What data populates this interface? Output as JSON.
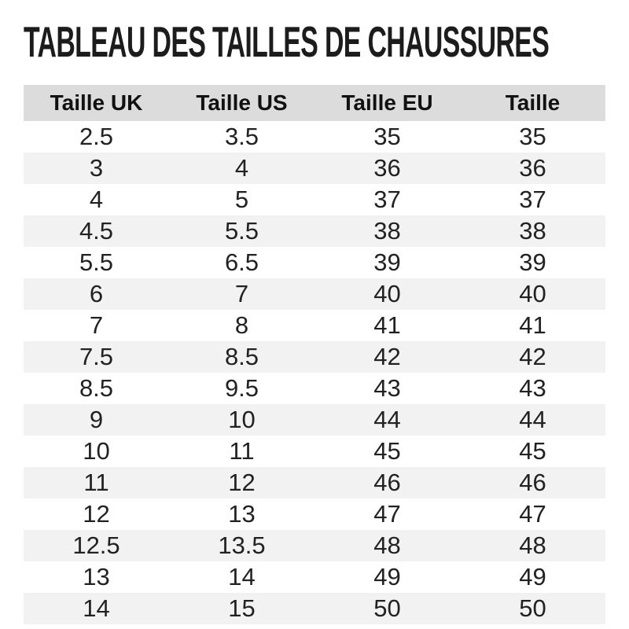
{
  "title": "TABLEAU DES TAILLES DE CHAUSSURES",
  "chart_data": {
    "type": "table",
    "title": "TABLEAU DES TAILLES DE CHAUSSURES",
    "columns": [
      "Taille UK",
      "Taille US",
      "Taille EU",
      "Taille"
    ],
    "rows": [
      [
        "2.5",
        "3.5",
        "35",
        "35"
      ],
      [
        "3",
        "4",
        "36",
        "36"
      ],
      [
        "4",
        "5",
        "37",
        "37"
      ],
      [
        "4.5",
        "5.5",
        "38",
        "38"
      ],
      [
        "5.5",
        "6.5",
        "39",
        "39"
      ],
      [
        "6",
        "7",
        "40",
        "40"
      ],
      [
        "7",
        "8",
        "41",
        "41"
      ],
      [
        "7.5",
        "8.5",
        "42",
        "42"
      ],
      [
        "8.5",
        "9.5",
        "43",
        "43"
      ],
      [
        "9",
        "10",
        "44",
        "44"
      ],
      [
        "10",
        "11",
        "45",
        "45"
      ],
      [
        "11",
        "12",
        "46",
        "46"
      ],
      [
        "12",
        "13",
        "47",
        "47"
      ],
      [
        "12.5",
        "13.5",
        "48",
        "48"
      ],
      [
        "13",
        "14",
        "49",
        "49"
      ],
      [
        "14",
        "15",
        "50",
        "50"
      ]
    ],
    "layout": {
      "zebra_striping": true,
      "first_data_row_background": "white",
      "alignment": "center"
    }
  },
  "colors": {
    "header_background": "#dcdcdc",
    "stripe_background": "#f2f2f2",
    "title_text": "#1c1c1c",
    "body_text": "#222222",
    "page_background": "#ffffff"
  }
}
